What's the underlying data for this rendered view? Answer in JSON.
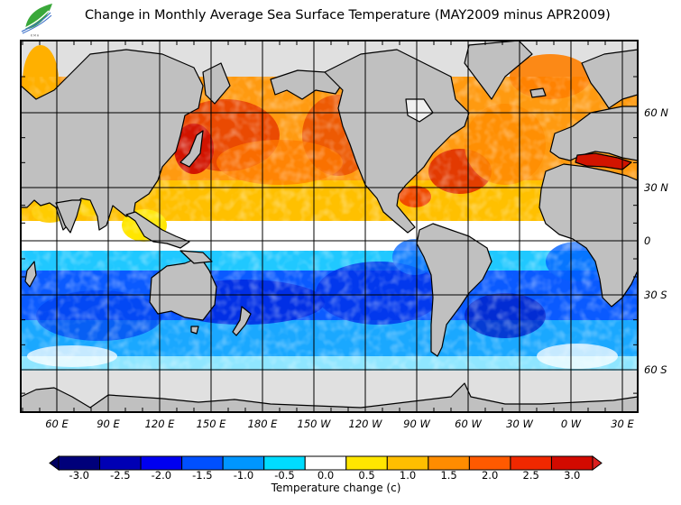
{
  "header": {
    "title": "Change in Monthly Average Sea Surface Temperature (MAY2009 minus APR2009)",
    "logo_icon": "leaf-wave-logo-icon"
  },
  "map": {
    "projection": "cylindrical, Pacific-centered",
    "longitude_labels": [
      "60 E",
      "90 E",
      "120 E",
      "150 E",
      "180 E",
      "150 W",
      "120 W",
      "90 W",
      "60 W",
      "30 W",
      "0 W",
      "30 E"
    ],
    "longitude_values": [
      60,
      90,
      120,
      150,
      180,
      210,
      240,
      270,
      300,
      330,
      360,
      390
    ],
    "latitude_labels": [
      "60 N",
      "30 N",
      "0",
      "30 S",
      "60 S"
    ],
    "latitude_values": [
      60,
      30,
      0,
      -30,
      -60
    ],
    "land_color": "#c0c0c0",
    "ice_color": "#e0e0e0",
    "regions_summary": {
      "north_pacific": "warming 1.0 to 3.0",
      "north_atlantic": "warming 1.0 to 2.5",
      "mediterranean": "warming above 3.0",
      "equatorial_band": "near 0.0",
      "south_pacific": "cooling -0.5 to -2.0",
      "south_indian": "cooling -0.5 to -1.5",
      "south_atlantic": "cooling -0.5 to -2.0"
    }
  },
  "colorbar": {
    "title": "Temperature change  (c)",
    "unit": "c",
    "min_extend": "triangle-left",
    "max_extend": "triangle-right",
    "ticks": [
      "-3.0",
      "-2.5",
      "-2.0",
      "-1.5",
      "-1.0",
      "-0.5",
      "0.0",
      "0.5",
      "1.0",
      "1.5",
      "2.0",
      "2.5",
      "3.0"
    ],
    "colors": [
      "#00007a",
      "#0000b4",
      "#0000f0",
      "#0050ff",
      "#0096ff",
      "#00dcff",
      "#ffffff",
      "#ffe600",
      "#ffbe00",
      "#ff8c00",
      "#ff5a00",
      "#f02800",
      "#d20a00"
    ],
    "under_color": "#000060",
    "over_color": "#dc1e1e"
  }
}
